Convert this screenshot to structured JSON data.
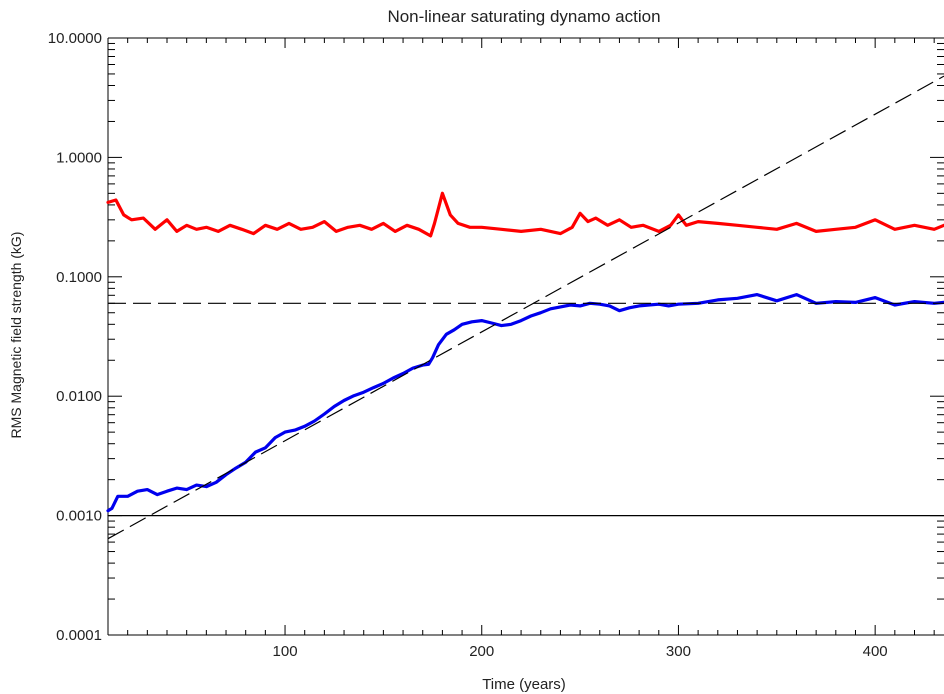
{
  "chart_data": {
    "type": "line",
    "title": "Non-linear saturating dynamo action",
    "xlabel": "Time (years)",
    "ylabel": "RMS Magnetic field strength (kG)",
    "xlim": [
      10,
      435
    ],
    "ylim": [
      0.0001,
      10.0
    ],
    "y_scale": "log",
    "x_ticks": [
      100,
      200,
      300,
      400
    ],
    "x_tick_labels": [
      "100",
      "200",
      "300",
      "400"
    ],
    "y_ticks": [
      0.0001,
      0.001,
      0.01,
      0.1,
      1.0,
      10.0
    ],
    "y_tick_labels": [
      "0.0001",
      "0.0010",
      "0.0100",
      "0.1000",
      "1.0000",
      "10.0000"
    ],
    "grid": false,
    "series": [
      {
        "color": "#ff0000",
        "style": "solid-thick",
        "x": [
          10,
          14,
          18,
          22,
          28,
          34,
          40,
          45,
          50,
          55,
          60,
          66,
          72,
          78,
          84,
          90,
          96,
          102,
          108,
          114,
          120,
          126,
          132,
          138,
          144,
          150,
          156,
          162,
          168,
          174,
          176,
          180,
          184,
          188,
          194,
          200,
          210,
          220,
          230,
          240,
          246,
          250,
          254,
          258,
          264,
          270,
          276,
          282,
          290,
          296,
          300,
          304,
          310,
          320,
          330,
          340,
          350,
          360,
          370,
          380,
          390,
          400,
          410,
          420,
          430,
          435
        ],
        "y": [
          0.42,
          0.44,
          0.33,
          0.3,
          0.31,
          0.25,
          0.3,
          0.24,
          0.27,
          0.25,
          0.26,
          0.24,
          0.27,
          0.25,
          0.23,
          0.27,
          0.25,
          0.28,
          0.25,
          0.26,
          0.29,
          0.24,
          0.26,
          0.27,
          0.25,
          0.28,
          0.24,
          0.27,
          0.25,
          0.22,
          0.28,
          0.5,
          0.33,
          0.28,
          0.26,
          0.26,
          0.25,
          0.24,
          0.25,
          0.23,
          0.26,
          0.34,
          0.29,
          0.31,
          0.27,
          0.3,
          0.26,
          0.27,
          0.24,
          0.27,
          0.33,
          0.27,
          0.29,
          0.28,
          0.27,
          0.26,
          0.25,
          0.28,
          0.24,
          0.25,
          0.26,
          0.3,
          0.25,
          0.27,
          0.25,
          0.27
        ]
      },
      {
        "color": "#0000ee",
        "style": "solid-thick",
        "x": [
          10,
          12,
          15,
          20,
          25,
          30,
          35,
          40,
          45,
          50,
          55,
          60,
          65,
          70,
          75,
          80,
          85,
          90,
          95,
          100,
          105,
          110,
          115,
          120,
          125,
          130,
          135,
          140,
          145,
          150,
          155,
          160,
          165,
          170,
          173,
          175,
          178,
          182,
          186,
          190,
          195,
          200,
          205,
          210,
          215,
          220,
          225,
          230,
          235,
          240,
          245,
          250,
          255,
          260,
          265,
          270,
          275,
          280,
          285,
          290,
          295,
          300,
          310,
          320,
          330,
          340,
          350,
          360,
          370,
          380,
          390,
          400,
          410,
          420,
          430,
          435
        ],
        "y": [
          0.0011,
          0.00115,
          0.00145,
          0.00145,
          0.0016,
          0.00165,
          0.0015,
          0.0016,
          0.0017,
          0.00165,
          0.0018,
          0.00175,
          0.0019,
          0.0022,
          0.0025,
          0.0028,
          0.0034,
          0.0037,
          0.0045,
          0.005,
          0.0052,
          0.0056,
          0.0062,
          0.0071,
          0.0082,
          0.0092,
          0.0101,
          0.0108,
          0.0118,
          0.0128,
          0.0142,
          0.0155,
          0.0172,
          0.0182,
          0.0185,
          0.021,
          0.027,
          0.033,
          0.036,
          0.04,
          0.042,
          0.043,
          0.041,
          0.039,
          0.04,
          0.043,
          0.047,
          0.05,
          0.054,
          0.056,
          0.058,
          0.057,
          0.06,
          0.059,
          0.057,
          0.052,
          0.055,
          0.057,
          0.058,
          0.059,
          0.057,
          0.059,
          0.06,
          0.064,
          0.066,
          0.071,
          0.063,
          0.071,
          0.06,
          0.062,
          0.061,
          0.067,
          0.058,
          0.062,
          0.06,
          0.061
        ]
      },
      {
        "color": "#000000",
        "style": "dashed",
        "x": [
          10,
          435
        ],
        "y": [
          0.00064,
          4.8
        ]
      },
      {
        "color": "#000000",
        "style": "dashed",
        "x": [
          10,
          435
        ],
        "y": [
          0.06,
          0.06
        ]
      },
      {
        "color": "#000000",
        "style": "solid-thin",
        "x": [
          10,
          435
        ],
        "y": [
          0.001,
          0.001
        ]
      }
    ]
  }
}
